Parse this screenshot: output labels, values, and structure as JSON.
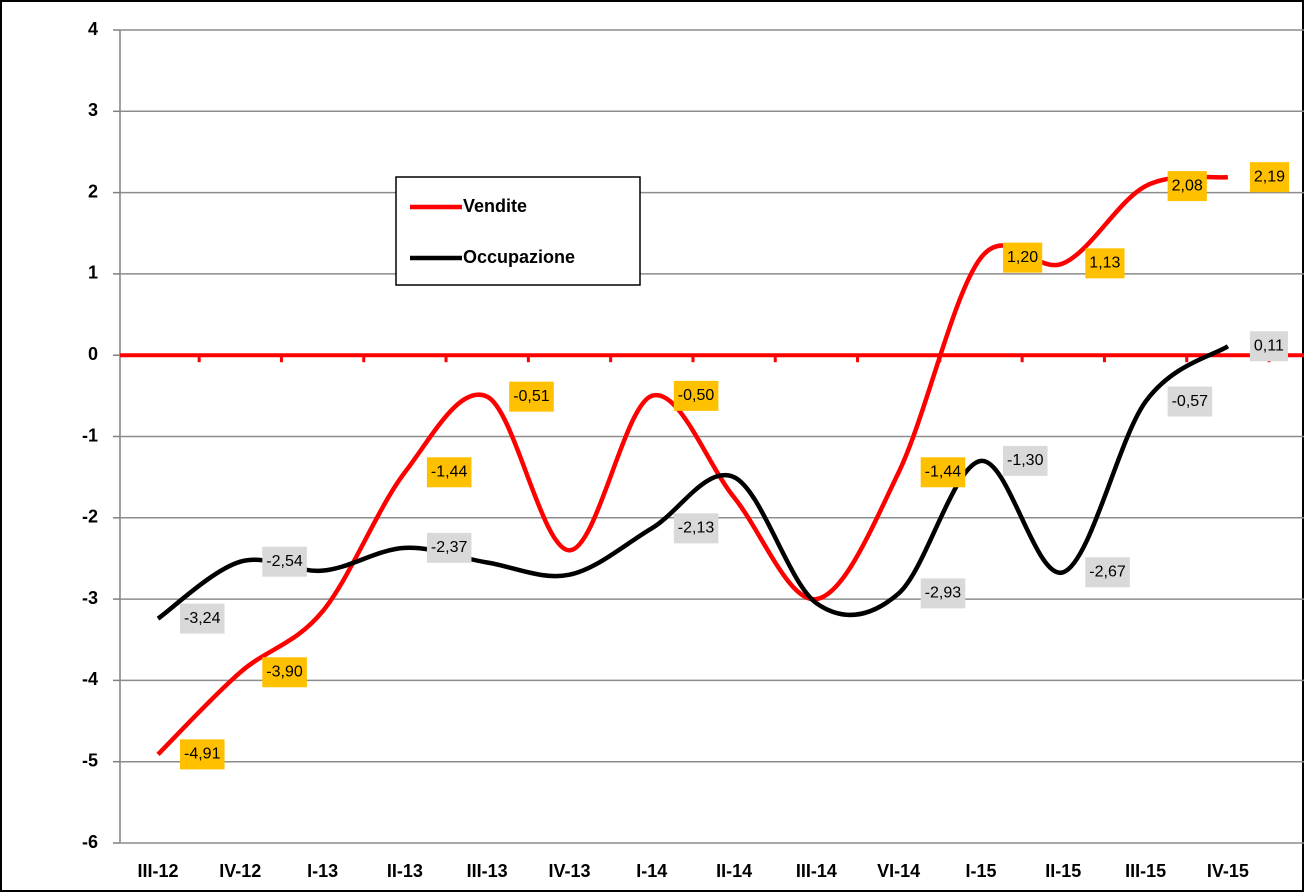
{
  "chart_data": {
    "type": "line",
    "categories": [
      "III-12",
      "IV-12",
      "I-13",
      "II-13",
      "III-13",
      "IV-13",
      "I-14",
      "II-14",
      "III-14",
      "VI-14",
      "I-15",
      "II-15",
      "III-15",
      "IV-15"
    ],
    "series": [
      {
        "name": "Vendite",
        "color": "#ff0000",
        "label_color": "#ffc000",
        "values": [
          -4.91,
          -3.9,
          -3.15,
          -1.44,
          -0.51,
          -2.4,
          -0.5,
          -1.75,
          -3.0,
          -1.44,
          1.2,
          1.13,
          2.08,
          2.19
        ],
        "value_labels": [
          "-4,91",
          "-3,90",
          null,
          "-1,44",
          "-0,51",
          null,
          "-0,50",
          null,
          null,
          "-1,44",
          "1,20",
          "1,13",
          "2,08",
          "2,19"
        ]
      },
      {
        "name": "Occupazione",
        "color": "#000000",
        "label_color": "#d9d9d9",
        "values": [
          -3.24,
          -2.54,
          -2.65,
          -2.37,
          -2.55,
          -2.7,
          -2.13,
          -1.5,
          -3.05,
          -2.93,
          -1.3,
          -2.67,
          -0.57,
          0.11
        ],
        "value_labels": [
          "-3,24",
          "-2,54",
          null,
          "-2,37",
          null,
          null,
          "-2,13",
          null,
          null,
          "-2,93",
          "-1,30",
          "-2,67",
          "-0,57",
          "0,11"
        ]
      }
    ],
    "ylim": [
      -6,
      4
    ],
    "yticks": [
      -6,
      -5,
      -4,
      -3,
      -2,
      -1,
      0,
      1,
      2,
      3,
      4
    ],
    "grid": true,
    "zero_line_color": "#ff0000"
  }
}
